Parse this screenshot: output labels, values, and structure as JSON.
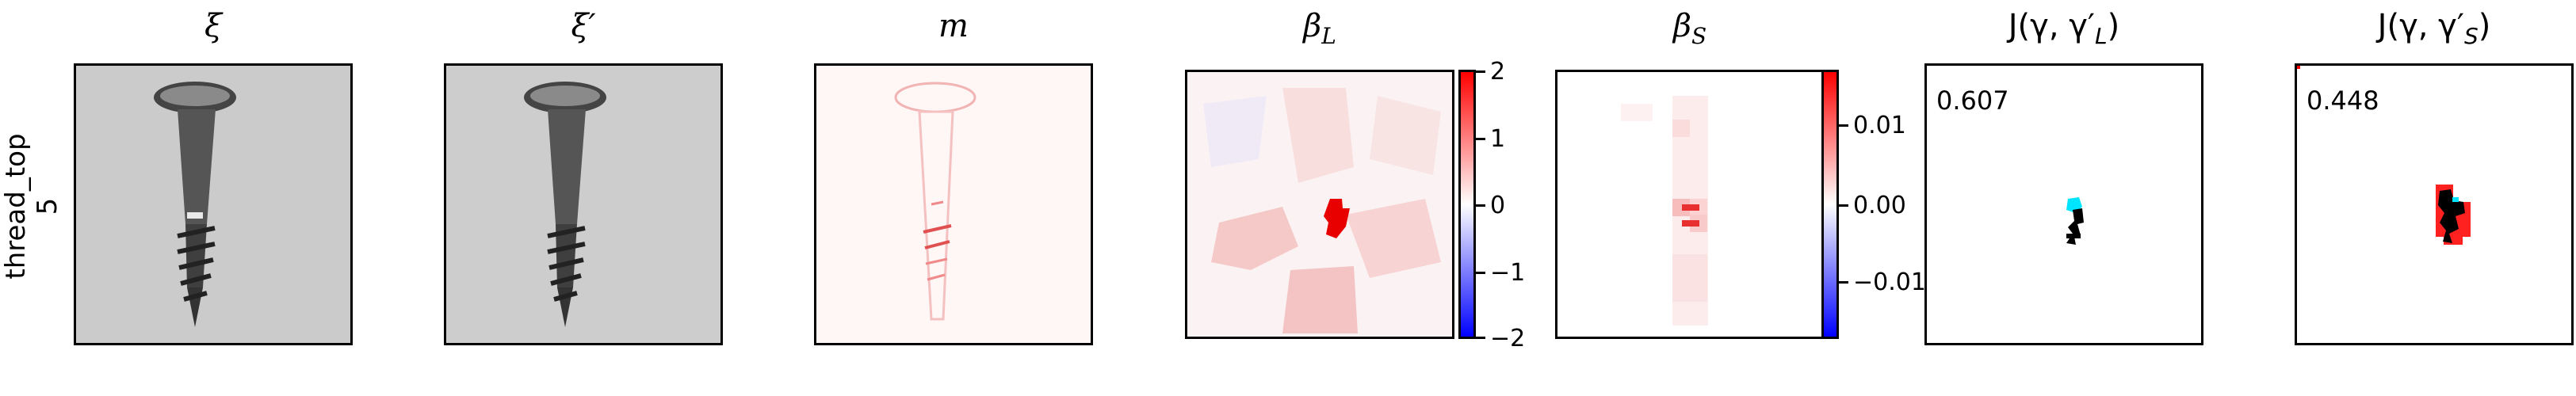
{
  "row_label": {
    "line1": "thread_top",
    "line2": "5"
  },
  "panels": [
    {
      "title": "ξ"
    },
    {
      "title": "ξ′"
    },
    {
      "title": "m"
    },
    {
      "title": "β",
      "sub": "L"
    },
    {
      "title": "β",
      "sub": "S"
    },
    {
      "title": "J(γ, γ′",
      "sub": "L",
      "tail": ")"
    },
    {
      "title": "J(γ, γ′",
      "sub": "S",
      "tail": ")"
    }
  ],
  "colorbars": {
    "beta_L": {
      "ticks": [
        "2",
        "1",
        "0",
        "−1",
        "−2"
      ],
      "range": [
        -2,
        2
      ]
    },
    "beta_S": {
      "ticks": [
        "0.01",
        "0.00",
        "−0.01"
      ],
      "range": [
        -0.017,
        0.017
      ]
    }
  },
  "scores": {
    "jl": "0.607",
    "js": "0.448"
  },
  "colors": {
    "positive": "#ff0000",
    "negative": "#0000ff",
    "overlay_cyan": "#00e5ff",
    "overlay_black": "#000000"
  }
}
